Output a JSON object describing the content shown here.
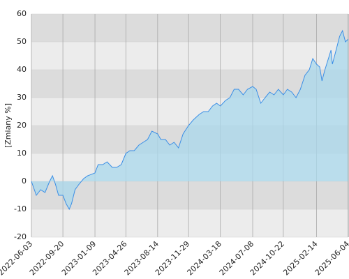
{
  "chart_data": {
    "type": "line",
    "y_label": "[Zmiany %]",
    "x": [
      "2022-06-03",
      "2022-06-20",
      "2022-07-05",
      "2022-07-20",
      "2022-08-05",
      "2022-08-15",
      "2022-08-25",
      "2022-09-05",
      "2022-09-20",
      "2022-10-01",
      "2022-10-12",
      "2022-10-20",
      "2022-11-01",
      "2022-11-15",
      "2022-12-01",
      "2022-12-15",
      "2023-01-09",
      "2023-01-20",
      "2023-02-05",
      "2023-02-20",
      "2023-03-10",
      "2023-03-25",
      "2023-04-10",
      "2023-04-26",
      "2023-05-10",
      "2023-05-25",
      "2023-06-10",
      "2023-06-25",
      "2023-07-10",
      "2023-07-25",
      "2023-08-14",
      "2023-08-25",
      "2023-09-10",
      "2023-09-25",
      "2023-10-10",
      "2023-10-25",
      "2023-11-10",
      "2023-11-29",
      "2023-12-15",
      "2024-01-05",
      "2024-01-20",
      "2024-02-05",
      "2024-02-20",
      "2024-03-05",
      "2024-03-18",
      "2024-04-05",
      "2024-04-20",
      "2024-05-05",
      "2024-05-20",
      "2024-06-05",
      "2024-06-20",
      "2024-07-08",
      "2024-07-20",
      "2024-08-05",
      "2024-08-20",
      "2024-09-05",
      "2024-09-20",
      "2024-10-05",
      "2024-10-22",
      "2024-11-05",
      "2024-11-20",
      "2024-12-05",
      "2024-12-20",
      "2025-01-05",
      "2025-01-20",
      "2025-02-01",
      "2025-02-14",
      "2025-02-25",
      "2025-03-05",
      "2025-03-15",
      "2025-04-05",
      "2025-04-10",
      "2025-04-20",
      "2025-05-05",
      "2025-05-15",
      "2025-05-25",
      "2025-06-04"
    ],
    "series": [
      {
        "color": "#3a8ee6",
        "fill": "#a9d8ec",
        "values": [
          0,
          -5,
          -3,
          -4,
          0,
          2,
          -1,
          -5,
          -5,
          -8,
          -10,
          -8,
          -3,
          -1,
          1,
          2,
          3,
          6,
          6,
          7,
          5,
          5,
          6,
          10,
          11,
          11,
          13,
          14,
          15,
          18,
          17,
          15,
          15,
          13,
          14,
          12,
          17,
          20,
          22,
          24,
          25,
          25,
          27,
          28,
          27,
          29,
          30,
          33,
          33,
          31,
          33,
          34,
          33,
          28,
          30,
          32,
          31,
          33,
          31,
          33,
          32,
          30,
          33,
          38,
          40,
          44,
          42,
          41,
          36,
          40,
          47,
          42,
          46,
          52,
          54,
          50,
          51
        ]
      }
    ],
    "xlim": [
      "2022-06-03",
      "2025-06-04"
    ],
    "xticks": [
      "2022-06-03",
      "2022-09-20",
      "2023-01-09",
      "2023-04-26",
      "2023-08-14",
      "2023-11-29",
      "2024-03-18",
      "2024-07-08",
      "2024-10-22",
      "2025-02-14",
      "2025-06-04"
    ],
    "ylim": [
      -20,
      60
    ],
    "yticks": [
      -20,
      -10,
      0,
      10,
      20,
      30,
      40,
      50,
      60
    ],
    "band_colors": [
      "#ececec",
      "#dcdcdc"
    ],
    "grid": true
  }
}
